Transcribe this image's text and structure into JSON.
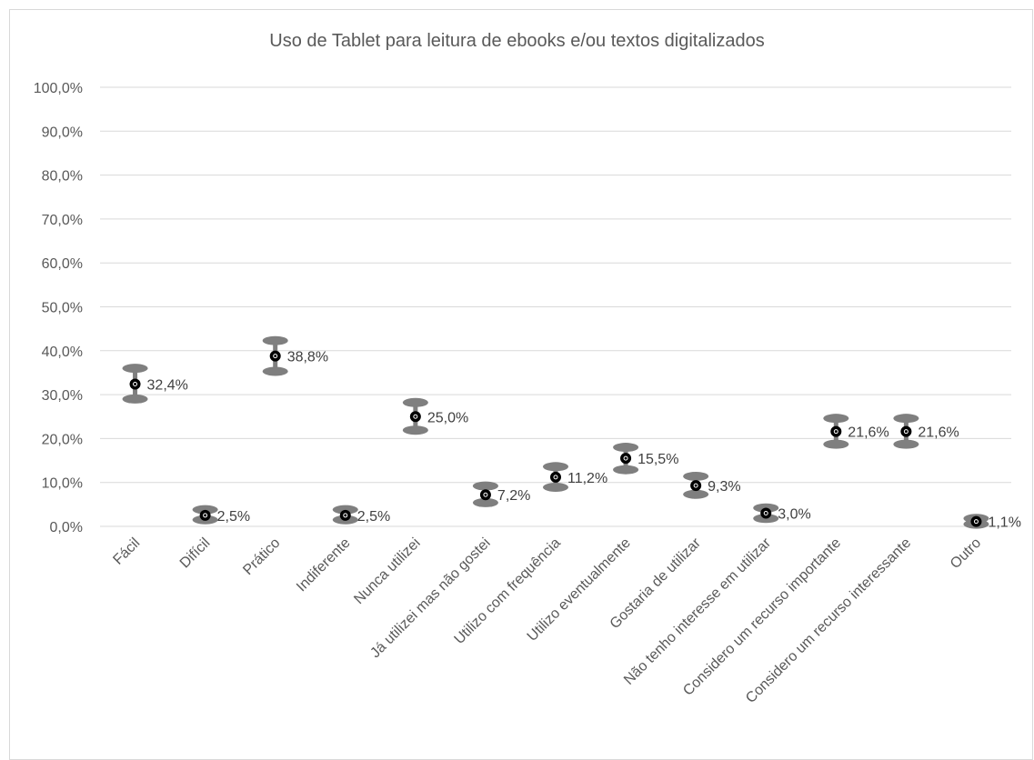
{
  "chart_data": {
    "type": "scatter",
    "title": "Uso de Tablet para leitura de ebooks e/ou textos digitalizados",
    "xlabel": "",
    "ylabel": "",
    "ylim": [
      0,
      100
    ],
    "y_ticks": [
      "0,0%",
      "10,0%",
      "20,0%",
      "30,0%",
      "40,0%",
      "50,0%",
      "60,0%",
      "70,0%",
      "80,0%",
      "90,0%",
      "100,0%"
    ],
    "grid": true,
    "categories": [
      "Fácil",
      "Difícil",
      "Prático",
      "Indiferente",
      "Nunca utilizei",
      "Já utilizei mas não gostei",
      "Utilizo com frequência",
      "Utilizo eventualmente",
      "Gostaria de utilizar",
      "Não tenho interesse em utilizar",
      "Considero um recurso importante",
      "Considero um recurso interessante",
      "Outro"
    ],
    "values": [
      32.4,
      2.5,
      38.8,
      2.5,
      25.0,
      7.2,
      11.2,
      15.5,
      9.3,
      3.0,
      21.6,
      21.6,
      1.1
    ],
    "labels": [
      "32,4%",
      "2,5%",
      "38,8%",
      "2,5%",
      "25,0%",
      "7,2%",
      "11,2%",
      "15,5%",
      "9,3%",
      "3,0%",
      "21,6%",
      "21,6%",
      "1,1%"
    ],
    "error_upper": [
      36.0,
      3.8,
      42.3,
      3.8,
      28.2,
      9.2,
      13.6,
      18.0,
      11.4,
      4.2,
      24.6,
      24.6,
      1.8
    ],
    "error_lower": [
      29.0,
      1.5,
      35.3,
      1.5,
      21.9,
      5.4,
      8.9,
      12.9,
      7.3,
      1.8,
      18.7,
      18.7,
      0.5
    ],
    "colors": {
      "marker": "#000000",
      "error_cap": "#7f7f7f",
      "grid": "#d9d9d9",
      "text": "#595959"
    }
  }
}
